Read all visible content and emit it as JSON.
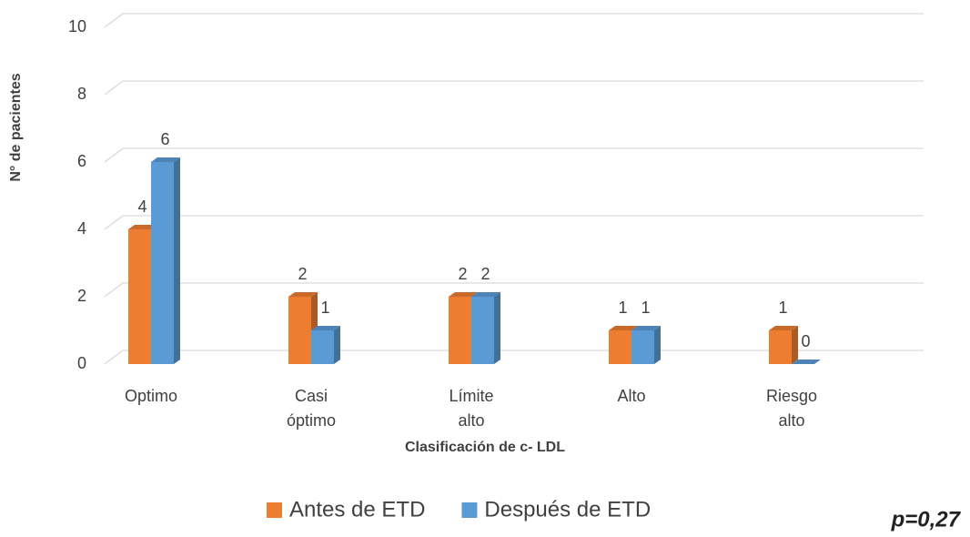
{
  "chart_data": {
    "type": "bar",
    "categories": [
      "Optimo",
      "Casi óptimo",
      "Límite alto",
      "Alto",
      "Riesgo alto"
    ],
    "series": [
      {
        "name": "Antes de ETD",
        "color": "#ed7d31",
        "values": [
          4,
          2,
          2,
          1,
          1
        ]
      },
      {
        "name": "Después de ETD",
        "color": "#5b9bd5",
        "values": [
          6,
          1,
          2,
          1,
          0
        ]
      }
    ],
    "ylim": [
      0,
      10
    ],
    "yticks": [
      0,
      2,
      4,
      6,
      8,
      10
    ],
    "grid": true,
    "y_label": "N° de pacientes",
    "x_label": "Clasificación de c- LDL",
    "annotation": "p=0,27"
  }
}
